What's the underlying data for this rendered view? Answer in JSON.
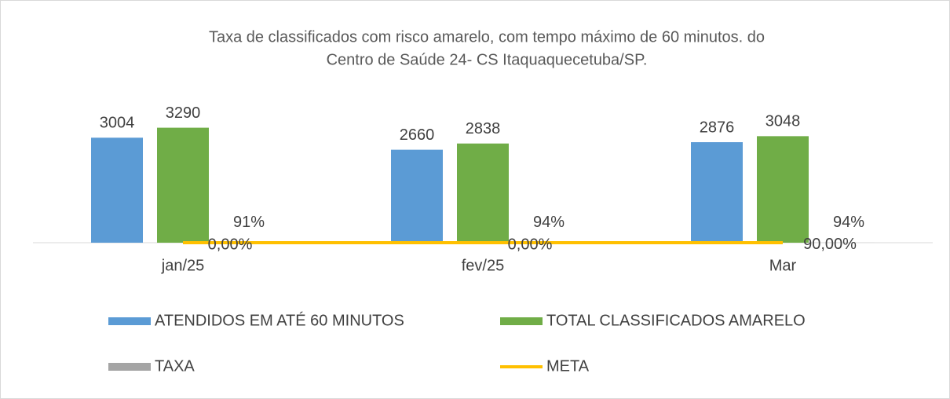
{
  "chart_data": {
    "type": "bar",
    "title": [
      "Taxa de classificados com risco amarelo, com tempo máximo de 60 minutos. do",
      "Centro de Saúde 24- CS Itaquaquecetuba/SP."
    ],
    "categories": [
      "jan/25",
      "fev/25",
      "Mar"
    ],
    "ylim": [
      0,
      4000
    ],
    "series": [
      {
        "name": "ATENDIDOS EM ATÉ 60 MINUTOS",
        "color": "#5b9bd5",
        "values": [
          3004,
          2660,
          2876
        ]
      },
      {
        "name": "TOTAL CLASSIFICADOS AMARELO",
        "color": "#70ad47",
        "values": [
          3290,
          2838,
          3048
        ]
      },
      {
        "name": "TAXA",
        "color": "#a5a5a5",
        "values": [
          0.91,
          0.94,
          0.94
        ],
        "value_labels": [
          "91%",
          "94%",
          "94%"
        ]
      },
      {
        "name": "META",
        "type": "line",
        "color": "#ffc000",
        "values": [
          0,
          0,
          0.9
        ],
        "value_labels": [
          "0,00%",
          "0,00%",
          "90,00%"
        ]
      }
    ],
    "legend": "bottom"
  }
}
